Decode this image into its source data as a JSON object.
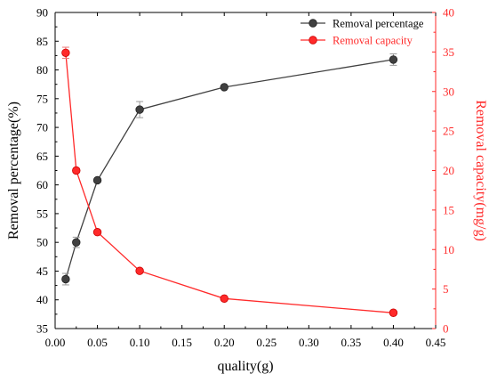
{
  "chart_data": {
    "type": "line",
    "xlabel": "quality(g)",
    "ylabel_left": "Removal percentage(%)",
    "ylabel_right": "Removal capacity(mg/g)",
    "xlim": [
      0.0,
      0.45
    ],
    "ylim_left": [
      35,
      90
    ],
    "ylim_right": [
      0,
      40
    ],
    "x_ticks": [
      "0.00",
      "0.05",
      "0.10",
      "0.15",
      "0.20",
      "0.25",
      "0.30",
      "0.35",
      "0.40",
      "0.45"
    ],
    "y_left_ticks": [
      "35",
      "40",
      "45",
      "50",
      "55",
      "60",
      "65",
      "70",
      "75",
      "80",
      "85",
      "90"
    ],
    "y_right_ticks": [
      "0",
      "5",
      "10",
      "15",
      "20",
      "25",
      "30",
      "35",
      "40"
    ],
    "legend_position": "top-right",
    "grid": false,
    "series": [
      {
        "name": "Removal percentage",
        "axis": "left",
        "color": "#404040",
        "x": [
          0.0125,
          0.025,
          0.05,
          0.1,
          0.2,
          0.4
        ],
        "values": [
          43.6,
          50.0,
          60.8,
          73.1,
          77.0,
          81.8
        ],
        "error": [
          1.0,
          0.9,
          0.0,
          1.4,
          0.0,
          1.0
        ]
      },
      {
        "name": "Removal capacity",
        "axis": "right",
        "color": "#ff2a2a",
        "x": [
          0.0125,
          0.025,
          0.05,
          0.1,
          0.2,
          0.4
        ],
        "values": [
          34.9,
          20.0,
          12.2,
          7.3,
          3.8,
          2.0
        ],
        "error": [
          0.7,
          0.0,
          0.0,
          0.0,
          0.0,
          0.0
        ]
      }
    ]
  }
}
